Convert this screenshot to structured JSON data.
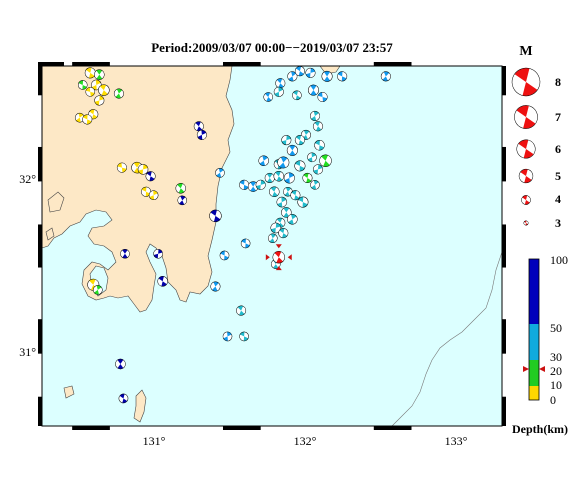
{
  "title": "Period:2009/03/07 00:00−−2019/03/07 23:57",
  "lon_ticks": [
    "131°",
    "132°",
    "133°"
  ],
  "lat_ticks": [
    "32°",
    "31°"
  ],
  "magnitude_legend": {
    "header": "M",
    "levels": [
      "8",
      "7",
      "6",
      "5",
      "4",
      "3"
    ]
  },
  "depth_scale": {
    "unit_label": "Depth(km)",
    "ticks": [
      "100",
      "50",
      "30",
      "20",
      "10",
      "0"
    ],
    "colors": {
      "shallow": "#ffd700",
      "mid": "#22cc22",
      "deep_mid": "#11aadd",
      "deep": "#0000bb"
    },
    "marker_depth_km": 25
  },
  "colors": {
    "ocean": "#dcffff",
    "land": "#fde8c6",
    "highlight": "#ee1111",
    "yellow": "#ffdd00",
    "green": "#22dd22",
    "cyan": "#22bbcc",
    "blue_light": "#1199ee",
    "blue_dark": "#0000aa"
  },
  "focal_mechanisms": [
    {
      "lon": 130.62,
      "lat": 32.63,
      "mag": 4.3,
      "color": "yellow",
      "rot": 20
    },
    {
      "lon": 130.68,
      "lat": 32.62,
      "mag": 4.2,
      "color": "green",
      "rot": 40
    },
    {
      "lon": 130.57,
      "lat": 32.56,
      "mag": 4.0,
      "color": "green",
      "rot": 10
    },
    {
      "lon": 130.66,
      "lat": 32.56,
      "mag": 4.2,
      "color": "yellow",
      "rot": 70
    },
    {
      "lon": 130.71,
      "lat": 32.53,
      "mag": 4.4,
      "color": "yellow",
      "rot": 30
    },
    {
      "lon": 130.62,
      "lat": 32.52,
      "mag": 4.0,
      "color": "yellow",
      "rot": 0
    },
    {
      "lon": 130.81,
      "lat": 32.51,
      "mag": 4.1,
      "color": "green",
      "rot": 50
    },
    {
      "lon": 130.68,
      "lat": 32.47,
      "mag": 4.1,
      "color": "yellow",
      "rot": 80
    },
    {
      "lon": 130.64,
      "lat": 32.39,
      "mag": 4.1,
      "color": "yellow",
      "rot": 20
    },
    {
      "lon": 130.55,
      "lat": 32.37,
      "mag": 4.0,
      "color": "yellow",
      "rot": 60
    },
    {
      "lon": 130.6,
      "lat": 32.36,
      "mag": 4.1,
      "color": "yellow",
      "rot": 10
    },
    {
      "lon": 131.34,
      "lat": 32.32,
      "mag": 4.1,
      "color": "blue_dark",
      "rot": 30
    },
    {
      "lon": 131.36,
      "lat": 32.27,
      "mag": 4.1,
      "color": "blue_dark",
      "rot": 70
    },
    {
      "lon": 130.83,
      "lat": 32.08,
      "mag": 4.1,
      "color": "yellow",
      "rot": 0
    },
    {
      "lon": 130.93,
      "lat": 32.08,
      "mag": 4.4,
      "color": "yellow",
      "rot": 40
    },
    {
      "lon": 130.97,
      "lat": 32.07,
      "mag": 4.2,
      "color": "yellow",
      "rot": 80
    },
    {
      "lon": 131.02,
      "lat": 32.03,
      "mag": 4.1,
      "color": "blue_dark",
      "rot": 20
    },
    {
      "lon": 131.48,
      "lat": 32.05,
      "mag": 4.0,
      "color": "blue_light",
      "rot": 60
    },
    {
      "lon": 131.22,
      "lat": 31.96,
      "mag": 4.2,
      "color": "green",
      "rot": 30
    },
    {
      "lon": 130.99,
      "lat": 31.94,
      "mag": 4.1,
      "color": "yellow",
      "rot": 10
    },
    {
      "lon": 131.04,
      "lat": 31.92,
      "mag": 4.0,
      "color": "yellow",
      "rot": 70
    },
    {
      "lon": 131.23,
      "lat": 31.89,
      "mag": 4.0,
      "color": "blue_dark",
      "rot": 50
    },
    {
      "lon": 131.45,
      "lat": 31.8,
      "mag": 4.6,
      "color": "blue_dark",
      "rot": 20
    },
    {
      "lon": 130.85,
      "lat": 31.58,
      "mag": 4.0,
      "color": "blue_dark",
      "rot": 40
    },
    {
      "lon": 131.07,
      "lat": 31.58,
      "mag": 4.0,
      "color": "blue_dark",
      "rot": 80
    },
    {
      "lon": 131.51,
      "lat": 31.57,
      "mag": 4.0,
      "color": "blue_light",
      "rot": 10
    },
    {
      "lon": 130.64,
      "lat": 31.4,
      "mag": 4.5,
      "color": "yellow",
      "rot": 30
    },
    {
      "lon": 130.67,
      "lat": 31.37,
      "mag": 4.0,
      "color": "green",
      "rot": 60
    },
    {
      "lon": 131.1,
      "lat": 31.42,
      "mag": 4.2,
      "color": "blue_dark",
      "rot": 20
    },
    {
      "lon": 131.45,
      "lat": 31.39,
      "mag": 4.1,
      "color": "blue_light",
      "rot": 50
    },
    {
      "lon": 131.62,
      "lat": 31.25,
      "mag": 4.1,
      "color": "cyan",
      "rot": 30
    },
    {
      "lon": 131.53,
      "lat": 31.1,
      "mag": 4.0,
      "color": "blue_light",
      "rot": 70
    },
    {
      "lon": 131.64,
      "lat": 31.1,
      "mag": 4.0,
      "color": "cyan",
      "rot": 10
    },
    {
      "lon": 130.82,
      "lat": 30.94,
      "mag": 4.2,
      "color": "blue_dark",
      "rot": 40
    },
    {
      "lon": 130.84,
      "lat": 30.74,
      "mag": 4.0,
      "color": "blue_dark",
      "rot": 20
    },
    {
      "lon": 131.88,
      "lat": 32.57,
      "mag": 4.1,
      "color": "blue_light",
      "rot": 30
    },
    {
      "lon": 131.96,
      "lat": 32.61,
      "mag": 4.1,
      "color": "blue_light",
      "rot": 60
    },
    {
      "lon": 132.01,
      "lat": 32.64,
      "mag": 4.1,
      "color": "blue_light",
      "rot": 20
    },
    {
      "lon": 132.08,
      "lat": 32.63,
      "mag": 4.1,
      "color": "blue_light",
      "rot": 80
    },
    {
      "lon": 132.19,
      "lat": 32.61,
      "mag": 4.3,
      "color": "blue_light",
      "rot": 40
    },
    {
      "lon": 132.29,
      "lat": 32.61,
      "mag": 4.1,
      "color": "blue_light",
      "rot": 10
    },
    {
      "lon": 132.58,
      "lat": 32.61,
      "mag": 4.1,
      "color": "blue_light",
      "rot": 50
    },
    {
      "lon": 131.8,
      "lat": 32.49,
      "mag": 4.0,
      "color": "blue_light",
      "rot": 30
    },
    {
      "lon": 131.87,
      "lat": 32.52,
      "mag": 4.1,
      "color": "cyan",
      "rot": 70
    },
    {
      "lon": 131.99,
      "lat": 32.5,
      "mag": 4.0,
      "color": "cyan",
      "rot": 20
    },
    {
      "lon": 132.1,
      "lat": 32.53,
      "mag": 4.3,
      "color": "blue_light",
      "rot": 40
    },
    {
      "lon": 132.16,
      "lat": 32.49,
      "mag": 4.1,
      "color": "blue_light",
      "rot": 0
    },
    {
      "lon": 132.11,
      "lat": 32.38,
      "mag": 4.1,
      "color": "cyan",
      "rot": 60
    },
    {
      "lon": 132.13,
      "lat": 32.32,
      "mag": 4.1,
      "color": "cyan",
      "rot": 30
    },
    {
      "lon": 132.05,
      "lat": 32.27,
      "mag": 4.1,
      "color": "cyan",
      "rot": 50
    },
    {
      "lon": 131.92,
      "lat": 32.24,
      "mag": 4.1,
      "color": "cyan",
      "rot": 80
    },
    {
      "lon": 132.01,
      "lat": 32.24,
      "mag": 4.1,
      "color": "cyan",
      "rot": 20
    },
    {
      "lon": 132.14,
      "lat": 32.21,
      "mag": 4.2,
      "color": "cyan",
      "rot": 10
    },
    {
      "lon": 131.96,
      "lat": 32.18,
      "mag": 4.3,
      "color": "blue_light",
      "rot": 40
    },
    {
      "lon": 132.09,
      "lat": 32.14,
      "mag": 4.0,
      "color": "cyan",
      "rot": 70
    },
    {
      "lon": 132.18,
      "lat": 32.12,
      "mag": 4.6,
      "color": "green",
      "rot": 30
    },
    {
      "lon": 131.77,
      "lat": 32.12,
      "mag": 4.2,
      "color": "blue_light",
      "rot": 60
    },
    {
      "lon": 131.87,
      "lat": 32.1,
      "mag": 4.1,
      "color": "cyan",
      "rot": 20
    },
    {
      "lon": 131.9,
      "lat": 32.11,
      "mag": 4.5,
      "color": "blue_light",
      "rot": 50
    },
    {
      "lon": 132.01,
      "lat": 32.09,
      "mag": 4.3,
      "color": "cyan",
      "rot": 10
    },
    {
      "lon": 132.13,
      "lat": 32.07,
      "mag": 4.1,
      "color": "cyan",
      "rot": 80
    },
    {
      "lon": 131.81,
      "lat": 32.02,
      "mag": 4.1,
      "color": "cyan",
      "rot": 40
    },
    {
      "lon": 131.87,
      "lat": 32.03,
      "mag": 4.2,
      "color": "cyan",
      "rot": 30
    },
    {
      "lon": 131.94,
      "lat": 32.02,
      "mag": 4.3,
      "color": "blue_light",
      "rot": 70
    },
    {
      "lon": 132.06,
      "lat": 32.02,
      "mag": 4.1,
      "color": "green",
      "rot": 20
    },
    {
      "lon": 132.11,
      "lat": 31.98,
      "mag": 4.0,
      "color": "cyan",
      "rot": 60
    },
    {
      "lon": 131.64,
      "lat": 31.98,
      "mag": 4.1,
      "color": "blue_light",
      "rot": 10
    },
    {
      "lon": 131.7,
      "lat": 31.97,
      "mag": 4.2,
      "color": "blue_light",
      "rot": 40
    },
    {
      "lon": 131.75,
      "lat": 31.98,
      "mag": 4.1,
      "color": "cyan",
      "rot": 80
    },
    {
      "lon": 131.84,
      "lat": 31.94,
      "mag": 4.2,
      "color": "cyan",
      "rot": 30
    },
    {
      "lon": 131.93,
      "lat": 31.94,
      "mag": 4.0,
      "color": "cyan",
      "rot": 50
    },
    {
      "lon": 131.98,
      "lat": 31.92,
      "mag": 4.1,
      "color": "cyan",
      "rot": 20
    },
    {
      "lon": 131.89,
      "lat": 31.88,
      "mag": 4.2,
      "color": "cyan",
      "rot": 70
    },
    {
      "lon": 132.03,
      "lat": 31.88,
      "mag": 4.3,
      "color": "cyan",
      "rot": 10
    },
    {
      "lon": 131.92,
      "lat": 31.82,
      "mag": 4.2,
      "color": "cyan",
      "rot": 40
    },
    {
      "lon": 131.96,
      "lat": 31.78,
      "mag": 4.2,
      "color": "cyan",
      "rot": 60
    },
    {
      "lon": 131.88,
      "lat": 31.76,
      "mag": 4.1,
      "color": "cyan",
      "rot": 30
    },
    {
      "lon": 131.85,
      "lat": 31.73,
      "mag": 4.2,
      "color": "cyan",
      "rot": 80
    },
    {
      "lon": 131.9,
      "lat": 31.7,
      "mag": 4.1,
      "color": "cyan",
      "rot": 20
    },
    {
      "lon": 131.83,
      "lat": 31.67,
      "mag": 4.0,
      "color": "cyan",
      "rot": 50
    },
    {
      "lon": 131.65,
      "lat": 31.64,
      "mag": 4.0,
      "color": "blue_light",
      "rot": 10
    },
    {
      "lon": 131.85,
      "lat": 31.52,
      "mag": 4.0,
      "color": "cyan",
      "rot": 40
    },
    {
      "lon": 131.87,
      "lat": 31.56,
      "mag": 4.6,
      "color": "highlight",
      "rot": 30,
      "highlight": true
    }
  ]
}
